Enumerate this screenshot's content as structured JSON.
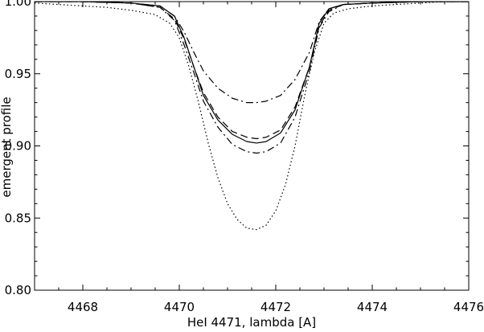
{
  "chart_data": {
    "type": "line",
    "title": "",
    "xlabel": "HeI 4471, lambda [A]",
    "ylabel": "emergent profile",
    "xlim": [
      4467,
      4476
    ],
    "ylim": [
      0.8,
      1.0
    ],
    "xticks": [
      4468,
      4470,
      4472,
      4474,
      4476
    ],
    "xtick_labels": [
      "4468",
      "4470",
      "4472",
      "4474",
      "4476"
    ],
    "yticks": [
      0.8,
      0.85,
      0.9,
      0.95,
      1.0
    ],
    "ytick_labels": [
      "0.80",
      "0.85",
      "0.90",
      "0.95",
      "1.00"
    ],
    "grid": false,
    "legend": false,
    "series": [
      {
        "style": "solid",
        "x": [
          4467.0,
          4468.0,
          4469.0,
          4469.6,
          4469.9,
          4470.1,
          4470.3,
          4470.5,
          4470.8,
          4471.1,
          4471.4,
          4471.6,
          4471.8,
          4472.1,
          4472.4,
          4472.7,
          4472.9,
          4473.1,
          4473.4,
          4474.0,
          4475.0,
          4476.0
        ],
        "y": [
          1.0,
          1.0,
          0.999,
          0.997,
          0.99,
          0.975,
          0.955,
          0.935,
          0.918,
          0.908,
          0.903,
          0.902,
          0.903,
          0.909,
          0.925,
          0.955,
          0.985,
          0.995,
          0.998,
          0.999,
          1.0,
          1.0
        ]
      },
      {
        "style": "dashed",
        "x": [
          4467.0,
          4468.0,
          4469.0,
          4469.6,
          4469.9,
          4470.1,
          4470.3,
          4470.5,
          4470.8,
          4471.1,
          4471.4,
          4471.6,
          4471.8,
          4472.1,
          4472.4,
          4472.7,
          4472.9,
          4473.1,
          4473.4,
          4474.0,
          4475.0,
          4476.0
        ],
        "y": [
          1.0,
          1.0,
          0.999,
          0.996,
          0.988,
          0.974,
          0.955,
          0.937,
          0.92,
          0.91,
          0.906,
          0.905,
          0.906,
          0.911,
          0.927,
          0.955,
          0.983,
          0.994,
          0.998,
          0.999,
          1.0,
          1.0
        ]
      },
      {
        "style": "dash-dot",
        "x": [
          4467.0,
          4468.0,
          4469.0,
          4469.6,
          4469.9,
          4470.1,
          4470.3,
          4470.5,
          4470.8,
          4471.1,
          4471.4,
          4471.6,
          4471.8,
          4472.1,
          4472.4,
          4472.7,
          4472.9,
          4473.1,
          4473.4,
          4474.0,
          4475.0,
          4476.0
        ],
        "y": [
          1.0,
          1.0,
          0.999,
          0.996,
          0.987,
          0.97,
          0.951,
          0.931,
          0.913,
          0.901,
          0.896,
          0.895,
          0.896,
          0.902,
          0.92,
          0.952,
          0.982,
          0.993,
          0.998,
          0.999,
          1.0,
          1.0
        ]
      },
      {
        "style": "dash-dot",
        "x": [
          4467.0,
          4468.0,
          4469.0,
          4469.6,
          4469.9,
          4470.1,
          4470.3,
          4470.5,
          4470.8,
          4471.1,
          4471.4,
          4471.6,
          4471.8,
          4472.1,
          4472.4,
          4472.7,
          4472.9,
          4473.1,
          4473.4,
          4474.0,
          4475.0,
          4476.0
        ],
        "y": [
          1.0,
          1.0,
          0.999,
          0.997,
          0.99,
          0.979,
          0.965,
          0.952,
          0.94,
          0.933,
          0.93,
          0.93,
          0.931,
          0.935,
          0.946,
          0.965,
          0.986,
          0.995,
          0.998,
          0.999,
          1.0,
          1.0
        ]
      },
      {
        "style": "dotted",
        "x": [
          4467.0,
          4467.5,
          4468.0,
          4468.5,
          4469.0,
          4469.5,
          4469.8,
          4470.0,
          4470.2,
          4470.4,
          4470.6,
          4470.8,
          4471.0,
          4471.2,
          4471.4,
          4471.6,
          4471.8,
          4472.0,
          4472.2,
          4472.4,
          4472.6,
          4472.8,
          4473.0,
          4473.2,
          4473.5,
          4474.0,
          4474.5,
          4475.0,
          4475.5,
          4476.0
        ],
        "y": [
          0.999,
          0.998,
          0.997,
          0.996,
          0.994,
          0.991,
          0.985,
          0.975,
          0.955,
          0.93,
          0.902,
          0.878,
          0.86,
          0.849,
          0.843,
          0.842,
          0.845,
          0.855,
          0.873,
          0.9,
          0.935,
          0.965,
          0.985,
          0.992,
          0.995,
          0.997,
          0.998,
          0.999,
          1.0,
          1.0
        ]
      }
    ]
  }
}
